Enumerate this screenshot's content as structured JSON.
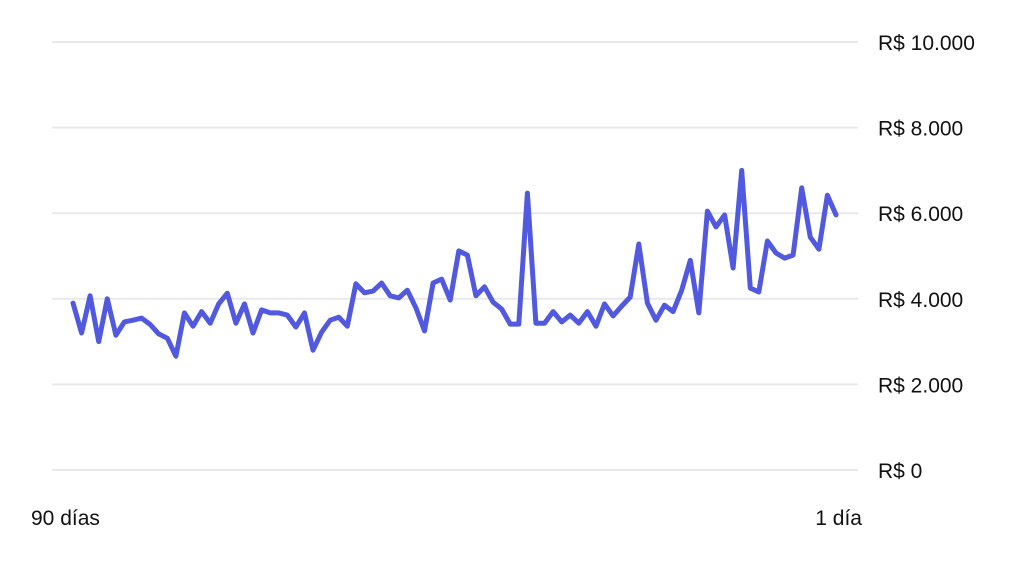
{
  "chart_data": {
    "type": "line",
    "title": "",
    "xlabel": "",
    "ylabel": "",
    "x_tick_labels": [
      "90 días",
      "1 día"
    ],
    "y_ticks": [
      0,
      2000,
      4000,
      6000,
      8000,
      10000
    ],
    "y_tick_labels": [
      "R$ 0",
      "R$ 2.000",
      "R$ 4.000",
      "R$ 6.000",
      "R$ 8.000",
      "R$ 10.000"
    ],
    "ylim": [
      0,
      10000
    ],
    "y_axis_side": "right",
    "grid": true,
    "line_color": "#5159e0",
    "grid_color": "#e9e9ec",
    "series": [
      {
        "values": [
          3900,
          3200,
          4070,
          3000,
          4000,
          3150,
          3460,
          3500,
          3550,
          3400,
          3180,
          3080,
          2660,
          3670,
          3360,
          3700,
          3430,
          3880,
          4130,
          3430,
          3880,
          3200,
          3740,
          3670,
          3670,
          3620,
          3340,
          3670,
          2800,
          3220,
          3500,
          3570,
          3360,
          4350,
          4140,
          4180,
          4370,
          4070,
          4020,
          4200,
          3790,
          3250,
          4370,
          4460,
          3970,
          5120,
          5020,
          4070,
          4280,
          3920,
          3760,
          3410,
          3410,
          6470,
          3430,
          3430,
          3700,
          3460,
          3620,
          3430,
          3700,
          3360,
          3880,
          3600,
          3830,
          4040,
          5280,
          3900,
          3500,
          3850,
          3700,
          4200,
          4900,
          3670,
          6050,
          5680,
          5960,
          4720,
          7000,
          4250,
          4160,
          5350,
          5070,
          4950,
          5020,
          6590,
          5440,
          5160,
          6420,
          5960
        ]
      }
    ]
  }
}
